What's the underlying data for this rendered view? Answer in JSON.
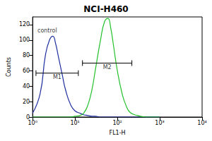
{
  "chart_data": {
    "type": "line",
    "title": "NCI-H460",
    "x_label": "FL1-H",
    "y_label": "Counts",
    "log": "x",
    "grid": false,
    "xlim": [
      1,
      10000
    ],
    "xticks": [
      {
        "value": 1,
        "label": "10⁰"
      },
      {
        "value": 10,
        "label": "10¹"
      },
      {
        "value": 100,
        "label": "10²"
      },
      {
        "value": 1000,
        "label": "10³"
      },
      {
        "value": 10000,
        "label": "10⁴"
      }
    ],
    "ylim": [
      0,
      130
    ],
    "yticks": [
      0,
      20,
      40,
      60,
      80,
      100,
      120
    ],
    "x": [
      1,
      1.5,
      2,
      2.5,
      3,
      3.5,
      4,
      5,
      6,
      8,
      10,
      13,
      16,
      20,
      25,
      30,
      40,
      50,
      60,
      70,
      80,
      100,
      130,
      160,
      200,
      300,
      500,
      1000
    ],
    "series": [
      {
        "name": "control",
        "color": "#1f2fa0",
        "values": [
          5,
          30,
          80,
          100,
          105,
          95,
          80,
          55,
          35,
          15,
          8,
          5,
          3,
          2,
          1,
          1,
          0,
          0,
          0,
          0,
          0,
          0,
          0,
          0,
          0,
          0,
          0,
          0
        ]
      },
      {
        "color": "#22c02a",
        "values": [
          0,
          0,
          0,
          0,
          0,
          0,
          0,
          0,
          0,
          0,
          1,
          2,
          5,
          15,
          35,
          60,
          100,
          124,
          128,
          115,
          95,
          60,
          30,
          15,
          6,
          2,
          0,
          0
        ]
      }
    ],
    "gates": [
      {
        "label": "M1",
        "x": [
          1.2,
          12
        ],
        "y": 57
      },
      {
        "label": "M2",
        "x": [
          15,
          220
        ],
        "y": 70
      }
    ],
    "annotations": [
      {
        "text": "control",
        "x": 1.3,
        "y": 112
      }
    ]
  }
}
